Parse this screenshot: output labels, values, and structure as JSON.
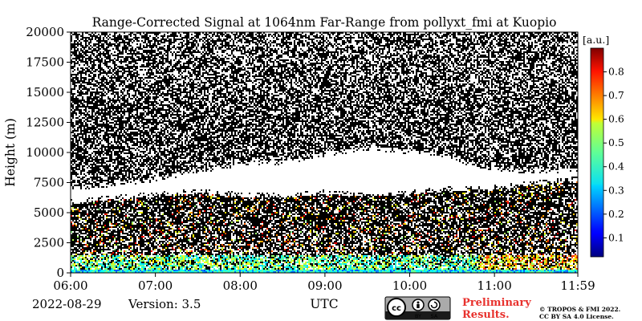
{
  "chart_data": {
    "type": "heatmap",
    "title": "Range-Corrected Signal at 1064nm Far-Range from pollyxt_fmi at Kuopio",
    "ylabel": "Height (m)",
    "xlabel": "UTC",
    "x_ticks": [
      "06:00",
      "07:00",
      "08:00",
      "09:00",
      "10:00",
      "11:00",
      "11:59"
    ],
    "x_range_hours": [
      6.0,
      11.983
    ],
    "y_ticks": [
      0,
      2500,
      5000,
      7500,
      10000,
      12500,
      15000,
      17500,
      20000
    ],
    "ylim": [
      0,
      20000
    ],
    "colorbar": {
      "unit": "[a.u.]",
      "ticks": [
        0.1,
        0.2,
        0.3,
        0.4,
        0.5,
        0.6,
        0.7,
        0.8
      ],
      "range": [
        0.02,
        0.9
      ],
      "colormap": "jet"
    },
    "cloud_layers": [
      {
        "name": "",
        "x_hours": [
          6.0,
          6.5,
          7.0,
          7.5,
          8.0,
          8.5,
          9.0,
          9.5,
          10.0,
          10.5,
          11.0,
          11.5,
          11.983
        ],
        "base_m": [
          5800,
          6200,
          6400,
          6700,
          6400,
          6300,
          6600,
          6400,
          6600,
          6900,
          7000,
          7400,
          7700
        ],
        "top_m": [
          7200,
          7600,
          8000,
          8700,
          9300,
          9400,
          10100,
          10600,
          10300,
          9700,
          8800,
          8700,
          8800
        ]
      }
    ]
  },
  "footer": {
    "date": "2022-08-29",
    "version": "Version: 3.5",
    "preliminary_line1": "Preliminary",
    "preliminary_line2": "Results.",
    "copyright_line1": "© TROPOS & FMI 2022.",
    "copyright_line2": "CC BY SA 4.0 License.",
    "license_badge": [
      "cc",
      "BY",
      "SA"
    ]
  },
  "colors": {
    "preliminary": "#e8312d",
    "noise": "#000000",
    "clear": "#ffffff",
    "badge_bg": "#aaaaaa",
    "badge_dark": "#1a1a1a"
  }
}
